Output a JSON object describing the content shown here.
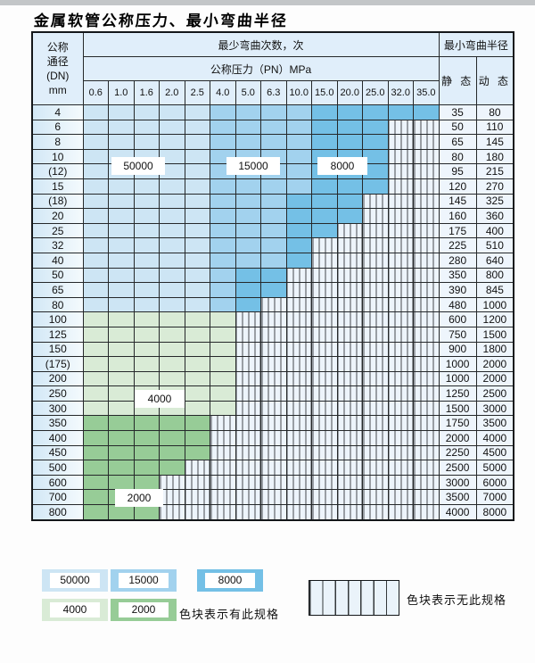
{
  "title": "金属软管公称压力、最小弯曲半径",
  "colors": {
    "b50000": "#cde5f4",
    "b15000": "#a2d2ee",
    "b8000": "#74c0e6",
    "g4000": "#d9ebd6",
    "g2000": "#97cc97",
    "hatchBg": "#edf4fb",
    "hatchLine": "#45484c",
    "headerBg": "#e0eefa",
    "dnFrom": "#d3e8f6",
    "dnTo": "#f4fafd",
    "valueBg": "#eef5fc"
  },
  "table": {
    "dn_header": "公称\n通径\n(DN)\nmm",
    "bend_times_header": "最少弯曲次数，次",
    "pressure_header": "公称压力（PN）MPa",
    "pressures": [
      "0.6",
      "1.0",
      "1.6",
      "2.0",
      "2.5",
      "4.0",
      "5.0",
      "6.3",
      "10.0",
      "15.0",
      "20.0",
      "25.0",
      "32.0",
      "35.0"
    ],
    "radius_header": "最小弯曲半径",
    "static_header": "静 态",
    "dynamic_header": "动 态",
    "rows": [
      {
        "dn": "4",
        "st": "35",
        "dy": "80",
        "segs": [
          [
            "b50000",
            0,
            4
          ],
          [
            "b15000",
            5,
            8
          ],
          [
            "b8000",
            9,
            13
          ]
        ]
      },
      {
        "dn": "6",
        "st": "50",
        "dy": "110",
        "segs": [
          [
            "b50000",
            0,
            4
          ],
          [
            "b15000",
            5,
            8
          ],
          [
            "b8000",
            9,
            11
          ]
        ]
      },
      {
        "dn": "8",
        "st": "65",
        "dy": "145",
        "segs": [
          [
            "b50000",
            0,
            4
          ],
          [
            "b15000",
            5,
            8
          ],
          [
            "b8000",
            9,
            11
          ]
        ]
      },
      {
        "dn": "10",
        "st": "80",
        "dy": "180",
        "segs": [
          [
            "b50000",
            0,
            4
          ],
          [
            "b15000",
            5,
            8
          ],
          [
            "b8000",
            9,
            11
          ]
        ]
      },
      {
        "dn": "(12)",
        "st": "95",
        "dy": "215",
        "segs": [
          [
            "b50000",
            0,
            4
          ],
          [
            "b15000",
            5,
            8
          ],
          [
            "b8000",
            9,
            11
          ]
        ]
      },
      {
        "dn": "15",
        "st": "120",
        "dy": "270",
        "segs": [
          [
            "b50000",
            0,
            4
          ],
          [
            "b15000",
            5,
            8
          ],
          [
            "b8000",
            9,
            11
          ]
        ]
      },
      {
        "dn": "(18)",
        "st": "145",
        "dy": "325",
        "segs": [
          [
            "b50000",
            0,
            4
          ],
          [
            "b15000",
            5,
            7
          ],
          [
            "b8000",
            8,
            10
          ]
        ]
      },
      {
        "dn": "20",
        "st": "160",
        "dy": "360",
        "segs": [
          [
            "b50000",
            0,
            4
          ],
          [
            "b15000",
            5,
            7
          ],
          [
            "b8000",
            8,
            10
          ]
        ]
      },
      {
        "dn": "25",
        "st": "175",
        "dy": "400",
        "segs": [
          [
            "b50000",
            0,
            4
          ],
          [
            "b15000",
            5,
            7
          ],
          [
            "b8000",
            8,
            9
          ]
        ]
      },
      {
        "dn": "32",
        "st": "225",
        "dy": "510",
        "segs": [
          [
            "b50000",
            0,
            4
          ],
          [
            "b15000",
            5,
            7
          ],
          [
            "b8000",
            8,
            8
          ]
        ]
      },
      {
        "dn": "40",
        "st": "280",
        "dy": "640",
        "segs": [
          [
            "b50000",
            0,
            4
          ],
          [
            "b15000",
            5,
            7
          ],
          [
            "b8000",
            8,
            8
          ]
        ]
      },
      {
        "dn": "50",
        "st": "350",
        "dy": "800",
        "segs": [
          [
            "b50000",
            0,
            4
          ],
          [
            "b15000",
            5,
            5
          ],
          [
            "b8000",
            6,
            7
          ]
        ]
      },
      {
        "dn": "65",
        "st": "390",
        "dy": "845",
        "segs": [
          [
            "b50000",
            0,
            4
          ],
          [
            "b15000",
            5,
            5
          ],
          [
            "b8000",
            6,
            7
          ]
        ]
      },
      {
        "dn": "80",
        "st": "480",
        "dy": "1000",
        "segs": [
          [
            "b50000",
            0,
            4
          ],
          [
            "b15000",
            5,
            5
          ],
          [
            "b8000",
            6,
            6
          ]
        ]
      },
      {
        "dn": "100",
        "st": "600",
        "dy": "1200",
        "segs": [
          [
            "g4000",
            0,
            5
          ]
        ]
      },
      {
        "dn": "125",
        "st": "750",
        "dy": "1500",
        "segs": [
          [
            "g4000",
            0,
            5
          ]
        ]
      },
      {
        "dn": "150",
        "st": "900",
        "dy": "1800",
        "segs": [
          [
            "g4000",
            0,
            5
          ]
        ]
      },
      {
        "dn": "(175)",
        "st": "1000",
        "dy": "2000",
        "segs": [
          [
            "g4000",
            0,
            5
          ]
        ]
      },
      {
        "dn": "200",
        "st": "1000",
        "dy": "2000",
        "segs": [
          [
            "g4000",
            0,
            5
          ]
        ]
      },
      {
        "dn": "250",
        "st": "1250",
        "dy": "2500",
        "segs": [
          [
            "g4000",
            0,
            5
          ]
        ]
      },
      {
        "dn": "300",
        "st": "1500",
        "dy": "3000",
        "segs": [
          [
            "g4000",
            0,
            5
          ]
        ]
      },
      {
        "dn": "350",
        "st": "1750",
        "dy": "3500",
        "segs": [
          [
            "g2000",
            0,
            4
          ]
        ]
      },
      {
        "dn": "400",
        "st": "2000",
        "dy": "4000",
        "segs": [
          [
            "g2000",
            0,
            4
          ]
        ]
      },
      {
        "dn": "450",
        "st": "2250",
        "dy": "4500",
        "segs": [
          [
            "g2000",
            0,
            4
          ]
        ]
      },
      {
        "dn": "500",
        "st": "2500",
        "dy": "5000",
        "segs": [
          [
            "g2000",
            0,
            3
          ]
        ]
      },
      {
        "dn": "600",
        "st": "3000",
        "dy": "6000",
        "segs": [
          [
            "g2000",
            0,
            2
          ]
        ]
      },
      {
        "dn": "700",
        "st": "3500",
        "dy": "7000",
        "segs": [
          [
            "g2000",
            0,
            2
          ]
        ]
      },
      {
        "dn": "800",
        "st": "4000",
        "dy": "8000",
        "segs": [
          [
            "g2000",
            0,
            2
          ]
        ]
      }
    ]
  },
  "overlay": {
    "l50000": "50000",
    "l15000": "15000",
    "l8000": "8000",
    "l4000": "4000",
    "l2000": "2000"
  },
  "legend": {
    "chips": [
      {
        "label": "50000",
        "band": "b50000"
      },
      {
        "label": "15000",
        "band": "b15000"
      },
      {
        "label": "8000",
        "band": "b8000"
      },
      {
        "label": "4000",
        "band": "g4000"
      },
      {
        "label": "2000",
        "band": "g2000"
      }
    ],
    "exists_text": "色块表示有此规格",
    "none_text": "色块表示无此规格"
  }
}
